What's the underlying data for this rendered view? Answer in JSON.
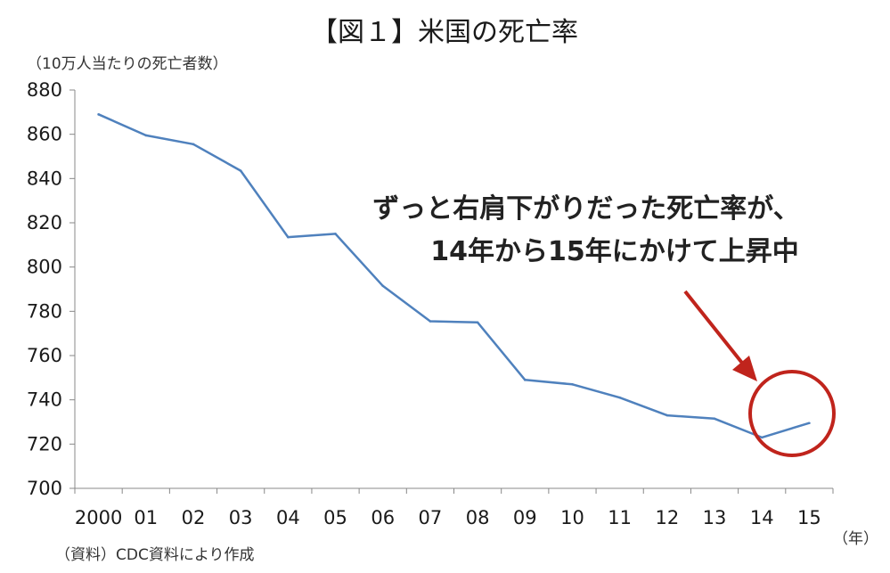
{
  "chart_data": {
    "type": "line",
    "title": "【図１】米国の死亡率",
    "ylabel": "（10万人当たりの死亡者数）",
    "xlabel": "（年）",
    "source": "（資料）CDC資料により作成",
    "categories": [
      "2000",
      "01",
      "02",
      "03",
      "04",
      "05",
      "06",
      "07",
      "08",
      "09",
      "10",
      "11",
      "12",
      "13",
      "14",
      "15"
    ],
    "series": [
      {
        "values": [
          869,
          859.5,
          855.5,
          843.5,
          813.5,
          815,
          791.5,
          775.5,
          775,
          749,
          747,
          741,
          733,
          731.5,
          723,
          729.5
        ]
      }
    ],
    "ylim": [
      700,
      880
    ],
    "yticks": [
      700,
      720,
      740,
      760,
      780,
      800,
      820,
      840,
      860,
      880
    ],
    "grid": false,
    "line_color": "#4F81BD",
    "annotation": {
      "lines": [
        "ずっと右肩下がりだった死亡率が、",
        "14年から15年にかけて上昇中"
      ],
      "color": "#C0241C"
    }
  }
}
